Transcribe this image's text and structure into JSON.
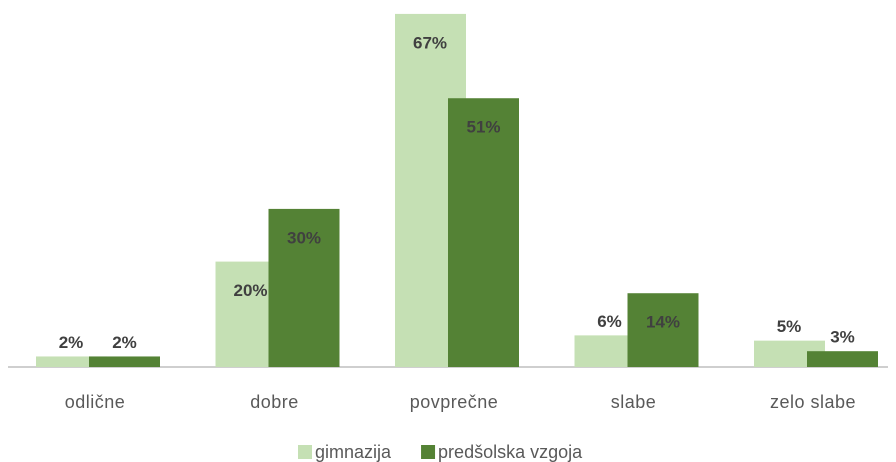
{
  "chart_data": {
    "type": "bar",
    "categories": [
      "odlične",
      "dobre",
      "povprečne",
      "slabe",
      "zelo slabe"
    ],
    "series": [
      {
        "name": "gimnazija",
        "color": "#c5e0b4",
        "values": [
          2,
          20,
          67,
          6,
          5
        ],
        "value_labels": [
          "2%",
          "20%",
          "67%",
          "6%",
          "5%"
        ]
      },
      {
        "name": "predšolska vzgoja",
        "color": "#548235",
        "values": [
          2,
          30,
          51,
          14,
          3
        ],
        "value_labels": [
          "2%",
          "30%",
          "51%",
          "14%",
          "3%"
        ]
      }
    ],
    "legend": "bottom"
  }
}
